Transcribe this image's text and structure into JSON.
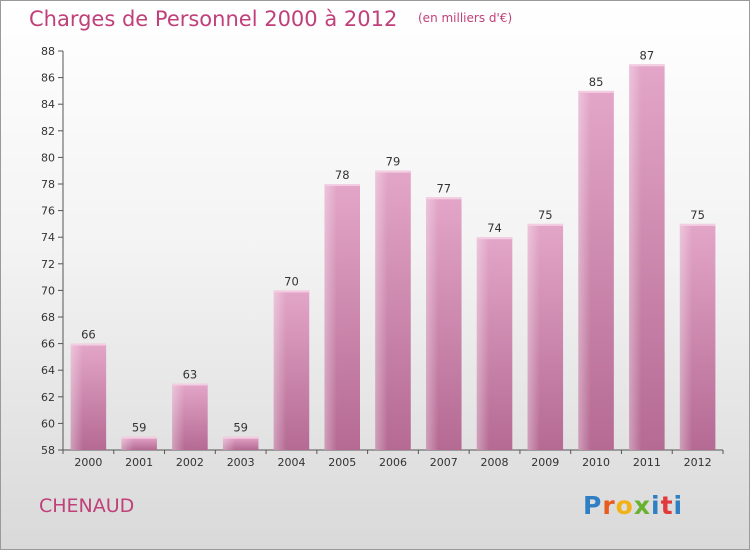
{
  "chart_data": {
    "type": "bar",
    "title": "Charges de Personnel 2000 à 2012",
    "subtitle": "(en milliers d'€)",
    "categories": [
      "2000",
      "2001",
      "2002",
      "2003",
      "2004",
      "2005",
      "2006",
      "2007",
      "2008",
      "2009",
      "2010",
      "2011",
      "2012"
    ],
    "values": [
      66,
      59,
      63,
      59,
      70,
      78,
      79,
      77,
      74,
      75,
      85,
      87,
      75
    ],
    "ylim": [
      58,
      88
    ],
    "yticks": [
      58,
      60,
      62,
      64,
      66,
      68,
      70,
      72,
      74,
      76,
      78,
      80,
      82,
      84,
      86,
      88
    ],
    "xlabel": "",
    "ylabel": "",
    "grid": false,
    "legend": "none",
    "bar_color": "#d88ab6"
  },
  "commune": "CHENAUD",
  "logo": {
    "letters": [
      "P",
      "r",
      "o",
      "x",
      "i",
      "t",
      "i"
    ]
  }
}
